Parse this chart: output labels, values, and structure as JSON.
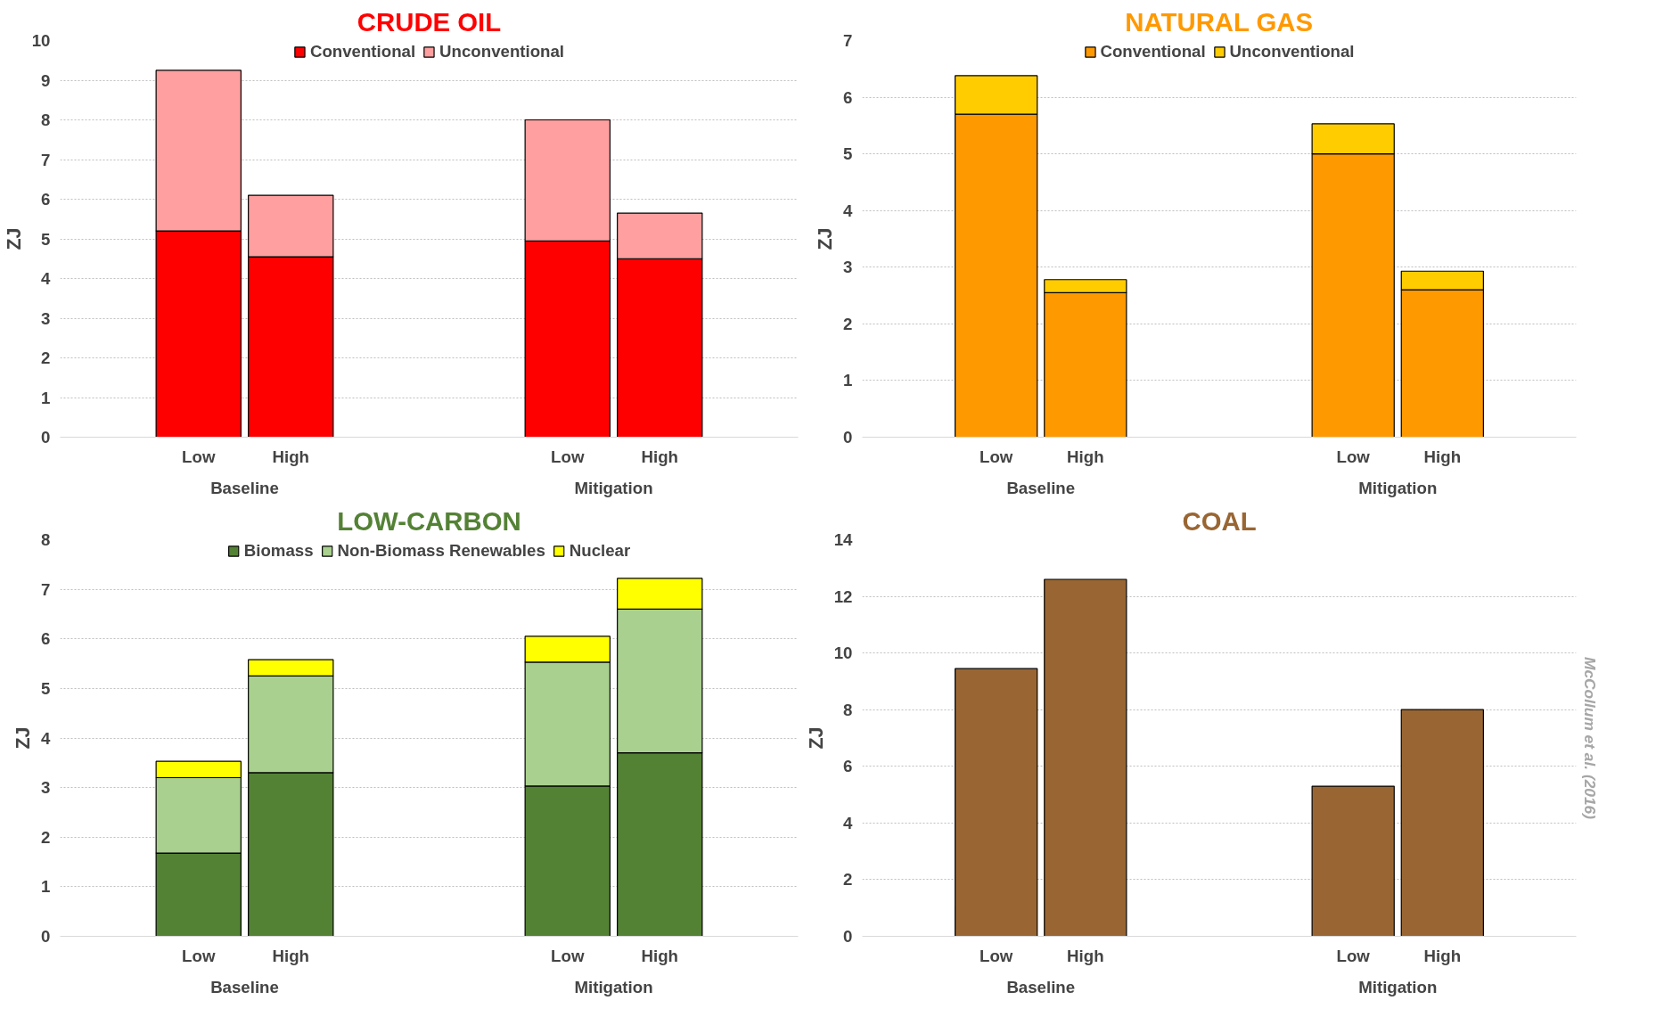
{
  "chart_data": [
    {
      "type": "bar",
      "stacked": true,
      "title": "CRUDE OIL",
      "ylabel": "ZJ",
      "categories": [
        "Low",
        "High",
        "Low",
        "High"
      ],
      "annotations": [
        "Baseline",
        "Mitigation"
      ],
      "ylim": [
        0,
        10
      ],
      "yticks": [
        0,
        1,
        2,
        3,
        4,
        5,
        6,
        7,
        8,
        9,
        10
      ],
      "grid": "y",
      "legend": "top",
      "series": [
        {
          "name": "Conventional",
          "color": "#ff0000",
          "values": [
            5.2,
            4.55,
            4.95,
            4.5
          ]
        },
        {
          "name": "Unconventional",
          "color": "#ff9f9f",
          "values": [
            4.05,
            1.55,
            3.05,
            1.15
          ]
        }
      ]
    },
    {
      "type": "bar",
      "stacked": true,
      "title": "NATURAL GAS",
      "ylabel": "ZJ",
      "categories": [
        "Low",
        "High",
        "Low",
        "High"
      ],
      "annotations": [
        "Baseline",
        "Mitigation"
      ],
      "ylim": [
        0,
        7
      ],
      "yticks": [
        0,
        1,
        2,
        3,
        4,
        5,
        6,
        7
      ],
      "grid": "y",
      "legend": "top",
      "series": [
        {
          "name": "Conventional",
          "color": "#ff9900",
          "values": [
            5.7,
            2.55,
            5.0,
            2.6
          ]
        },
        {
          "name": "Unconventional",
          "color": "#ffcc00",
          "values": [
            0.68,
            0.23,
            0.53,
            0.33
          ]
        }
      ]
    },
    {
      "type": "bar",
      "stacked": true,
      "title": "LOW-CARBON",
      "ylabel": "ZJ",
      "categories": [
        "Low",
        "High",
        "Low",
        "High"
      ],
      "annotations": [
        "Baseline",
        "Mitigation"
      ],
      "ylim": [
        0,
        8
      ],
      "yticks": [
        0,
        1,
        2,
        3,
        4,
        5,
        6,
        7,
        8
      ],
      "grid": "y",
      "legend": "top",
      "series": [
        {
          "name": "Biomass",
          "color": "#548235",
          "values": [
            1.68,
            3.3,
            3.03,
            3.7
          ]
        },
        {
          "name": "Non-Biomass Renewables",
          "color": "#a9d08e",
          "values": [
            1.52,
            1.95,
            2.5,
            2.9
          ]
        },
        {
          "name": "Nuclear",
          "color": "#ffff00",
          "values": [
            0.33,
            0.33,
            0.52,
            0.62
          ]
        }
      ]
    },
    {
      "type": "bar",
      "title": "COAL",
      "ylabel": "ZJ",
      "categories": [
        "Low",
        "High",
        "Low",
        "High"
      ],
      "annotations": [
        "Baseline",
        "Mitigation",
        "McCollum et al. (2016)"
      ],
      "ylim": [
        0,
        14
      ],
      "yticks": [
        0,
        2,
        4,
        6,
        8,
        10,
        12,
        14
      ],
      "grid": "y",
      "series": [
        {
          "color": "#996633",
          "values": [
            9.45,
            12.6,
            5.3,
            8.0
          ]
        }
      ]
    }
  ]
}
